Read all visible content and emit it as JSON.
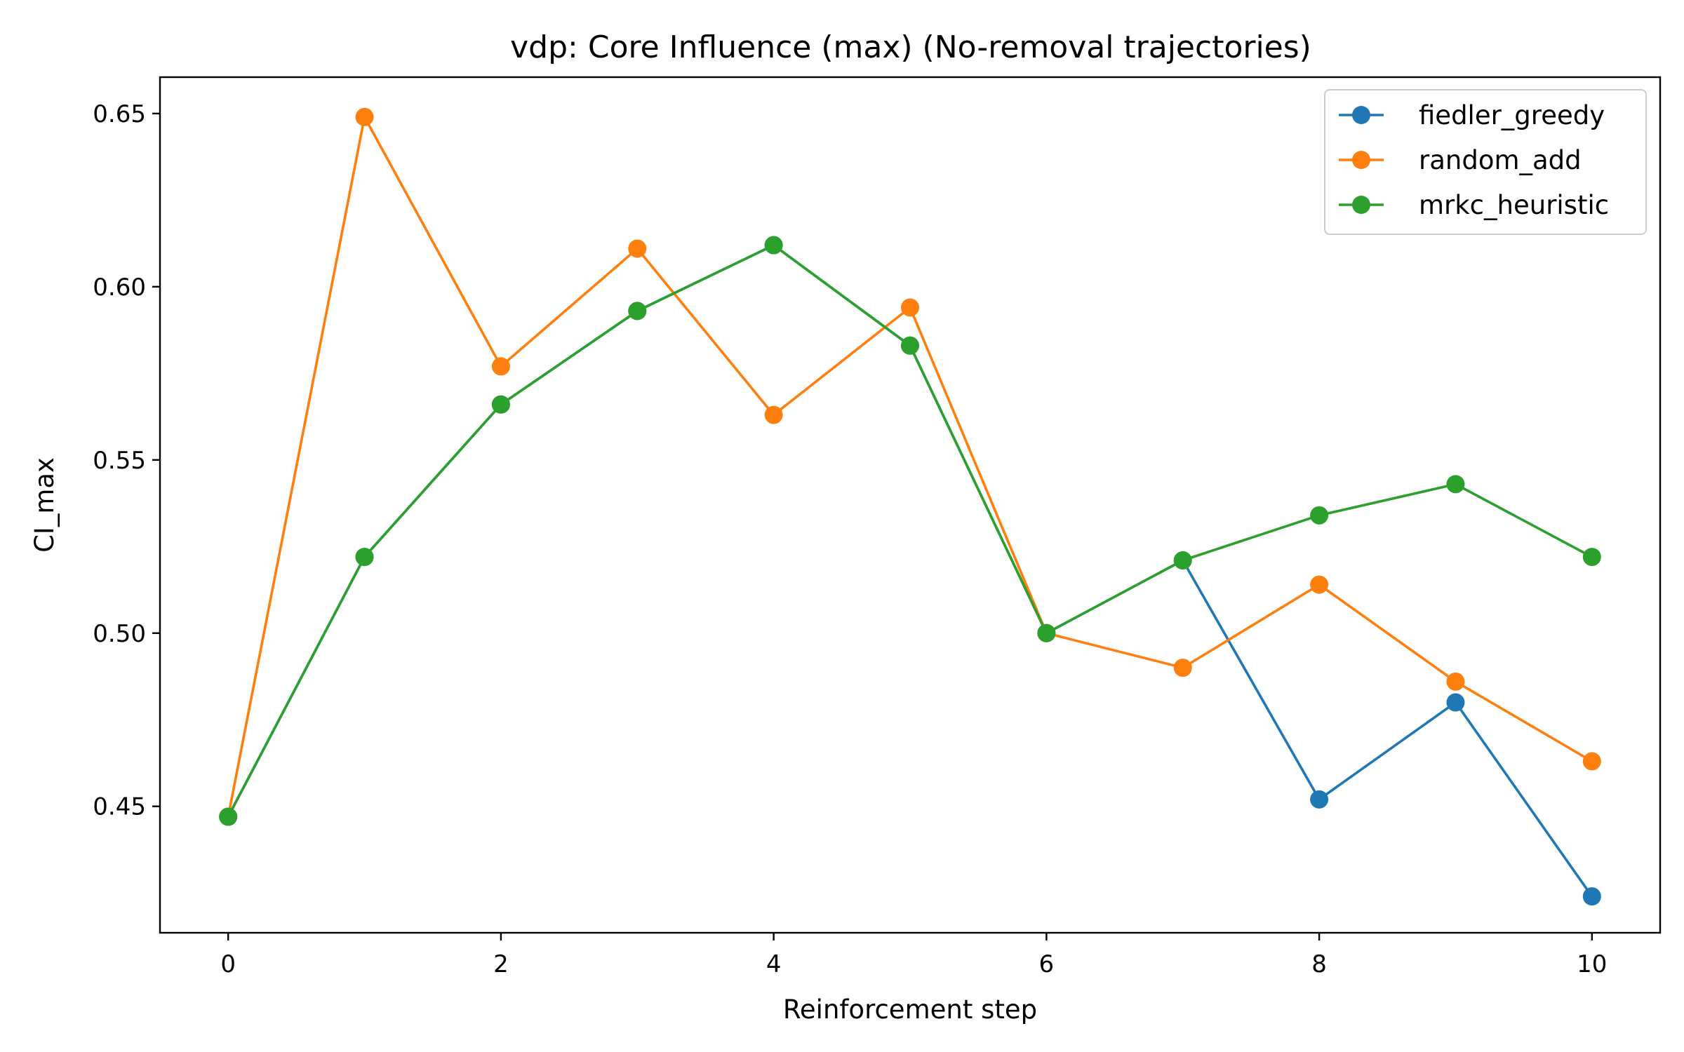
{
  "chart_data": {
    "type": "line",
    "title": "vdp: Core Influence (max) (No-removal trajectories)",
    "xlabel": "Reinforcement step",
    "ylabel": "CI_max",
    "xlim": [
      -0.5,
      10.5
    ],
    "ylim": [
      0.4135,
      0.6605
    ],
    "xticks": [
      0,
      2,
      4,
      6,
      8,
      10
    ],
    "yticks": [
      0.45,
      0.5,
      0.55,
      0.6,
      0.65
    ],
    "ytick_labels": [
      "0.45",
      "0.50",
      "0.55",
      "0.60",
      "0.65"
    ],
    "grid": false,
    "legend_position": "top-right",
    "x": [
      0,
      1,
      2,
      3,
      4,
      5,
      6,
      7,
      8,
      9,
      10
    ],
    "series": [
      {
        "name": "fiedler_greedy",
        "color": "#1f77b4",
        "values": [
          0.447,
          0.522,
          0.566,
          0.593,
          0.612,
          0.583,
          0.5,
          0.521,
          0.452,
          0.48,
          0.424
        ]
      },
      {
        "name": "random_add",
        "color": "#ff7f0e",
        "values": [
          0.447,
          0.649,
          0.577,
          0.611,
          0.563,
          0.594,
          0.5,
          0.49,
          0.514,
          0.486,
          0.463
        ]
      },
      {
        "name": "mrkc_heuristic",
        "color": "#2ca02c",
        "values": [
          0.447,
          0.522,
          0.566,
          0.593,
          0.612,
          0.583,
          0.5,
          0.521,
          0.534,
          0.543,
          0.522
        ]
      }
    ]
  }
}
